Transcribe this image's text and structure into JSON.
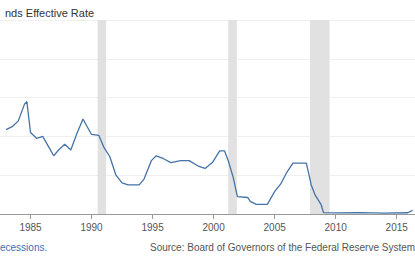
{
  "chart_data": {
    "type": "line",
    "title": "nds Effective Rate",
    "annotations": [
      "ecessions.",
      "Source: Board of Governors of the Federal Reserve System (US)"
    ],
    "color": "#4572a7",
    "recessions": [
      [
        1990.5,
        1991.2
      ],
      [
        2001.2,
        2001.9
      ],
      [
        2007.9,
        2009.5
      ]
    ],
    "x": [
      1983.0,
      1983.5,
      1984.0,
      1984.5,
      1984.7,
      1985.0,
      1985.5,
      1986.0,
      1986.5,
      1986.9,
      1987.3,
      1987.8,
      1988.3,
      1988.8,
      1989.3,
      1989.6,
      1990.0,
      1990.6,
      1991.0,
      1991.5,
      1992.0,
      1992.5,
      1993.0,
      1993.9,
      1994.3,
      1994.9,
      1995.3,
      1995.9,
      1996.5,
      1997.3,
      1998.0,
      1998.8,
      1999.3,
      1999.9,
      2000.5,
      2000.9,
      2001.2,
      2001.6,
      2001.95,
      2002.8,
      2003.0,
      2003.5,
      2004.4,
      2005.0,
      2005.5,
      2006.0,
      2006.5,
      2007.6,
      2008.0,
      2008.3,
      2008.8,
      2009.0,
      2010.0,
      2012.0,
      2014.0,
      2015.9,
      2016.3
    ],
    "values": [
      8.7,
      9.0,
      9.6,
      11.3,
      11.6,
      8.4,
      7.8,
      8.0,
      6.9,
      6.0,
      6.6,
      7.2,
      6.6,
      8.3,
      9.8,
      9.1,
      8.2,
      8.1,
      6.9,
      5.9,
      4.0,
      3.2,
      3.0,
      3.0,
      3.6,
      5.5,
      6.0,
      5.7,
      5.3,
      5.5,
      5.5,
      4.9,
      4.7,
      5.3,
      6.5,
      6.5,
      5.5,
      3.8,
      1.8,
      1.7,
      1.3,
      1.0,
      1.0,
      2.3,
      3.1,
      4.3,
      5.25,
      5.25,
      3.0,
      2.0,
      1.0,
      0.15,
      0.12,
      0.14,
      0.09,
      0.13,
      0.38
    ],
    "xlim": [
      1982.5,
      2016.5
    ],
    "xticks": [
      1985,
      1990,
      1995,
      2000,
      2005,
      2010,
      2015
    ],
    "ylim": [
      0,
      20
    ],
    "yticks": [
      0,
      4,
      8,
      12,
      16,
      20
    ],
    "grid": true,
    "tick_labels": "x"
  }
}
